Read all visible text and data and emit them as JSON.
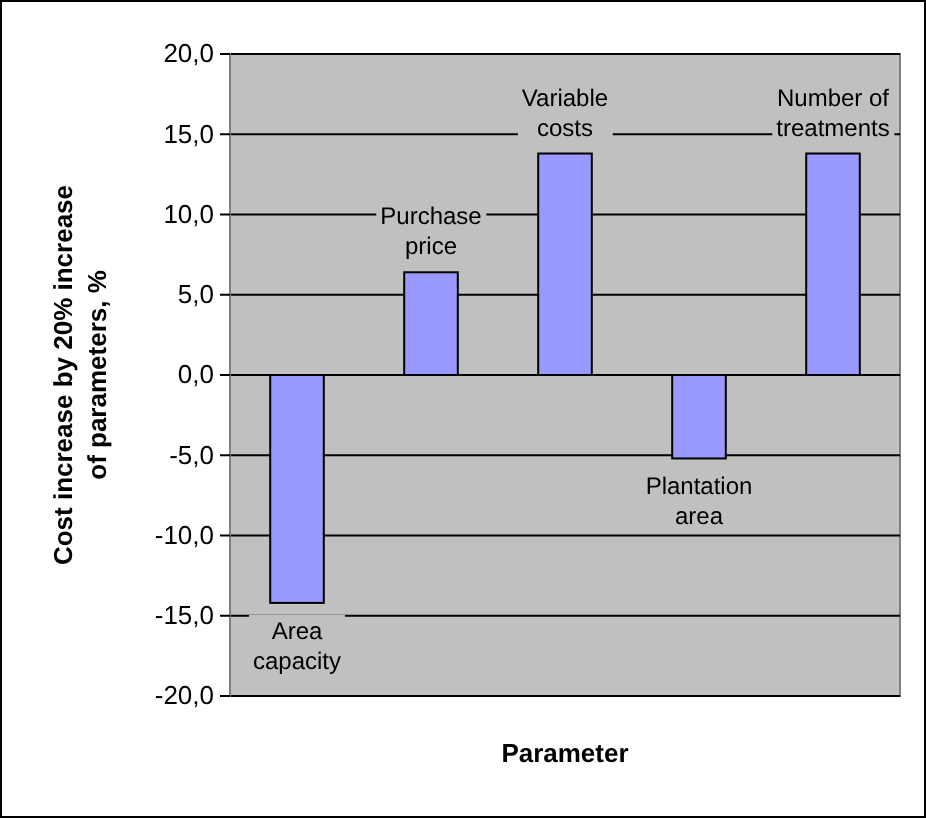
{
  "chart_data": {
    "type": "bar",
    "xlabel": "Parameter",
    "ylabel": "Cost increase by 20% increase of parameters, %",
    "categories": [
      "Area capacity",
      "Purchase price",
      "Variable costs",
      "Plantation area",
      "Number of treatments"
    ],
    "values": [
      -14.2,
      6.4,
      13.8,
      -5.2,
      13.8
    ],
    "color": "#9999ff",
    "ylim": [
      -20,
      20
    ],
    "yticks": [
      {
        "value": -20,
        "label": "-20,0"
      },
      {
        "value": -15,
        "label": "-15,0"
      },
      {
        "value": -10,
        "label": "-10,0"
      },
      {
        "value": -5,
        "label": "-5,0"
      },
      {
        "value": 0,
        "label": "0,0"
      },
      {
        "value": 5,
        "label": "5,0"
      },
      {
        "value": 10,
        "label": "10,0"
      },
      {
        "value": 15,
        "label": "15,0"
      },
      {
        "value": 20,
        "label": "20,0"
      }
    ],
    "grid": "y"
  }
}
